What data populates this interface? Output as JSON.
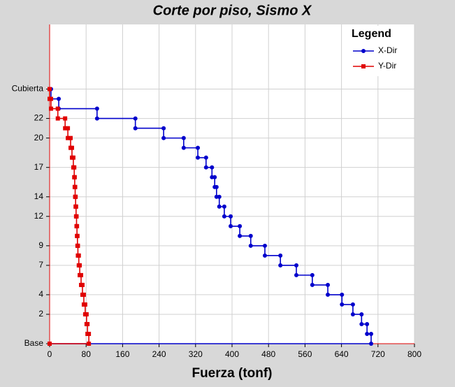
{
  "chart_data": {
    "type": "line",
    "title": "Corte por piso, Sismo X",
    "xlabel": "Fuerza (tonf)",
    "legend_title": "Legend",
    "legend": "top-right",
    "grid": true,
    "xlim": [
      0,
      800
    ],
    "xticks": [
      0,
      80,
      160,
      240,
      320,
      400,
      480,
      560,
      640,
      720,
      800
    ],
    "ylim": [
      -1,
      31.6
    ],
    "yticks": [
      {
        "value": -1,
        "label": "Base"
      },
      2,
      4,
      7,
      9,
      12,
      14,
      17,
      20,
      22,
      {
        "value": 25,
        "label": "Cubierta"
      }
    ],
    "series": [
      {
        "name": "X-Dir",
        "color": "#0000cc",
        "marker": "circle",
        "x": [
          3,
          3,
          20,
          20,
          104,
          104,
          188,
          188,
          250,
          250,
          294,
          294,
          325,
          325,
          343,
          343,
          356,
          356,
          362,
          362,
          366,
          366,
          372,
          372,
          383,
          383,
          397,
          397,
          417,
          417,
          441,
          441,
          472,
          472,
          506,
          506,
          541,
          541,
          576,
          576,
          610,
          610,
          641,
          641,
          665,
          665,
          684,
          684,
          696,
          696,
          705,
          705,
          0
        ],
        "y": [
          25,
          24,
          24,
          23,
          23,
          22,
          22,
          21,
          21,
          20,
          20,
          19,
          19,
          18,
          18,
          17,
          17,
          16,
          16,
          15,
          15,
          14,
          14,
          13,
          13,
          12,
          12,
          11,
          11,
          10,
          10,
          9,
          9,
          8,
          8,
          7,
          7,
          6,
          6,
          5,
          5,
          4,
          4,
          3,
          3,
          2,
          2,
          1,
          1,
          0,
          0,
          -1,
          -1
        ]
      },
      {
        "name": "Y-Dir",
        "color": "#e00000",
        "marker": "square",
        "x": [
          0,
          0,
          3,
          3,
          18,
          18,
          34,
          34,
          40,
          40,
          46,
          46,
          49,
          49,
          52,
          52,
          54,
          54,
          55,
          55,
          56,
          56,
          57,
          57,
          58,
          58,
          59,
          59,
          60,
          60,
          61,
          61,
          62,
          62,
          64,
          64,
          66,
          66,
          69,
          69,
          72,
          72,
          75,
          75,
          78,
          78,
          81,
          81,
          83,
          83,
          86,
          86,
          0
        ],
        "y": [
          25,
          24,
          24,
          23,
          23,
          22,
          22,
          21,
          21,
          20,
          20,
          19,
          19,
          18,
          18,
          17,
          17,
          16,
          16,
          15,
          15,
          14,
          14,
          13,
          13,
          12,
          12,
          11,
          11,
          10,
          10,
          9,
          9,
          8,
          8,
          7,
          7,
          6,
          6,
          5,
          5,
          4,
          4,
          3,
          3,
          2,
          2,
          1,
          1,
          0,
          0,
          -1,
          -1
        ]
      }
    ]
  }
}
